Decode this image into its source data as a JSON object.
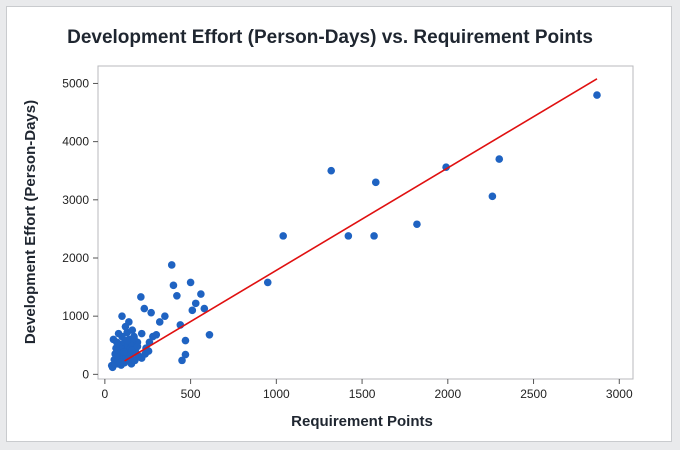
{
  "chart_data": {
    "type": "scatter",
    "title": "Development Effort (Person-Days) vs. Requirement Points",
    "xlabel": "Requirement Points",
    "ylabel": "Development Effort (Person-Days)",
    "xlim": [
      -40,
      3080
    ],
    "ylim": [
      -80,
      5300
    ],
    "xticks": [
      "0",
      "500",
      "1000",
      "1500",
      "2000",
      "2500",
      "3000"
    ],
    "yticks": [
      "0",
      "1000",
      "2000",
      "3000",
      "4000",
      "5000"
    ],
    "grid": false,
    "legend": false,
    "colors": {
      "points": "#1f63c2",
      "fit_line": "#e01010"
    },
    "fit_line": {
      "x": [
        115,
        2870
      ],
      "y": [
        230,
        5080
      ]
    },
    "series": [
      {
        "x": [
          2870,
          2300,
          2260,
          1990,
          1320,
          1580,
          1820,
          1040,
          1420,
          1570,
          950,
          390,
          400,
          500,
          560,
          610,
          580,
          210,
          230,
          270,
          420,
          350,
          440,
          470,
          510,
          470,
          450,
          530,
          40,
          55,
          60,
          65,
          70,
          75,
          80,
          85,
          90,
          95,
          100,
          105,
          110,
          115,
          120,
          125,
          130,
          135,
          140,
          145,
          150,
          155,
          160,
          170,
          180,
          190,
          200,
          215,
          240,
          260,
          280,
          300,
          320,
          45,
          60,
          75,
          95,
          115,
          135,
          155,
          175,
          195,
          215,
          235,
          255,
          120,
          140,
          160,
          100,
          130,
          50,
          80,
          110,
          160,
          190,
          70,
          90,
          170
        ],
        "y": [
          4800,
          3700,
          3060,
          3560,
          3500,
          3300,
          2580,
          2380,
          2380,
          2380,
          1580,
          1880,
          1530,
          1580,
          1380,
          680,
          1130,
          1330,
          1130,
          1060,
          1350,
          1000,
          850,
          580,
          1100,
          340,
          240,
          1220,
          150,
          250,
          350,
          450,
          180,
          300,
          420,
          520,
          250,
          380,
          650,
          480,
          280,
          550,
          400,
          300,
          720,
          500,
          600,
          350,
          450,
          280,
          520,
          650,
          380,
          550,
          300,
          700,
          450,
          550,
          650,
          680,
          900,
          120,
          180,
          220,
          160,
          200,
          260,
          180,
          240,
          320,
          280,
          350,
          400,
          820,
          900,
          760,
          1000,
          580,
          600,
          700,
          380,
          420,
          480,
          550,
          200,
          620
        ]
      }
    ]
  }
}
